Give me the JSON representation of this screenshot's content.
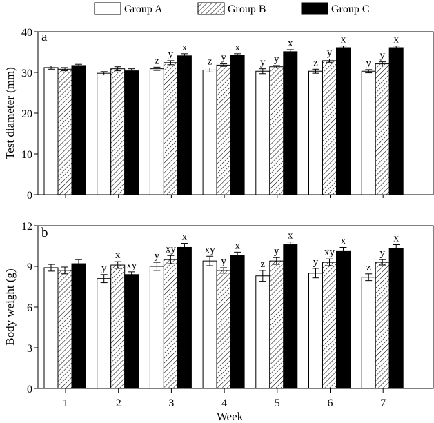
{
  "legend": {
    "placement": "top-center",
    "items": [
      {
        "label": "Group A",
        "pattern": "white"
      },
      {
        "label": "Group B",
        "pattern": "hatched"
      },
      {
        "label": "Group C",
        "pattern": "black"
      }
    ]
  },
  "xlabel": "Week",
  "chart_data": [
    {
      "type": "bar",
      "panel_label": "a",
      "ylabel": "Test diameter (mm)",
      "categories": [
        "1",
        "2",
        "3",
        "4",
        "5",
        "6",
        "7"
      ],
      "ylim": [
        0,
        40
      ],
      "yticks": [
        "0",
        "10",
        "20",
        "30",
        "40"
      ],
      "grid": false,
      "series": [
        {
          "name": "Group A",
          "values": [
            31.2,
            29.8,
            30.9,
            30.6,
            30.3,
            30.3,
            30.3
          ],
          "errors": [
            0.4,
            0.4,
            0.4,
            0.5,
            0.6,
            0.5,
            0.4
          ],
          "letters": [
            "",
            "",
            "z",
            "z",
            "y",
            "z",
            "y"
          ]
        },
        {
          "name": "Group B",
          "values": [
            30.8,
            30.9,
            32.4,
            31.8,
            31.4,
            32.9,
            32.1
          ],
          "errors": [
            0.4,
            0.5,
            0.5,
            0.3,
            0.3,
            0.4,
            0.5
          ],
          "letters": [
            "",
            "",
            "y",
            "y",
            "y",
            "y",
            "y"
          ]
        },
        {
          "name": "Group C",
          "values": [
            31.7,
            30.4,
            34.1,
            34.2,
            35.1,
            36.1,
            36.1
          ],
          "errors": [
            0.3,
            0.5,
            0.5,
            0.4,
            0.5,
            0.4,
            0.4
          ],
          "letters": [
            "",
            "",
            "x",
            "x",
            "x",
            "x",
            "x"
          ]
        }
      ]
    },
    {
      "type": "bar",
      "panel_label": "b",
      "ylabel": "Body weight (g)",
      "categories": [
        "1",
        "2",
        "3",
        "4",
        "5",
        "6",
        "7"
      ],
      "ylim": [
        0,
        12
      ],
      "yticks": [
        "0",
        "3",
        "6",
        "9",
        "12"
      ],
      "grid": false,
      "series": [
        {
          "name": "Group A",
          "values": [
            8.9,
            8.1,
            9.0,
            9.4,
            8.3,
            8.5,
            8.2
          ],
          "errors": [
            0.25,
            0.3,
            0.3,
            0.35,
            0.4,
            0.35,
            0.25
          ],
          "letters": [
            "",
            "y",
            "y",
            "xy",
            "z",
            "y",
            "z"
          ]
        },
        {
          "name": "Group B",
          "values": [
            8.7,
            9.1,
            9.5,
            8.7,
            9.4,
            9.3,
            9.3
          ],
          "errors": [
            0.25,
            0.25,
            0.3,
            0.2,
            0.25,
            0.25,
            0.2
          ],
          "letters": [
            "",
            "x",
            "xy",
            "y",
            "y",
            "xy",
            "y"
          ]
        },
        {
          "name": "Group C",
          "values": [
            9.2,
            8.4,
            10.4,
            9.8,
            10.6,
            10.1,
            10.3
          ],
          "errors": [
            0.3,
            0.2,
            0.3,
            0.25,
            0.2,
            0.3,
            0.3
          ],
          "letters": [
            "",
            "xy",
            "x",
            "x",
            "x",
            "x",
            "x"
          ]
        }
      ]
    }
  ]
}
